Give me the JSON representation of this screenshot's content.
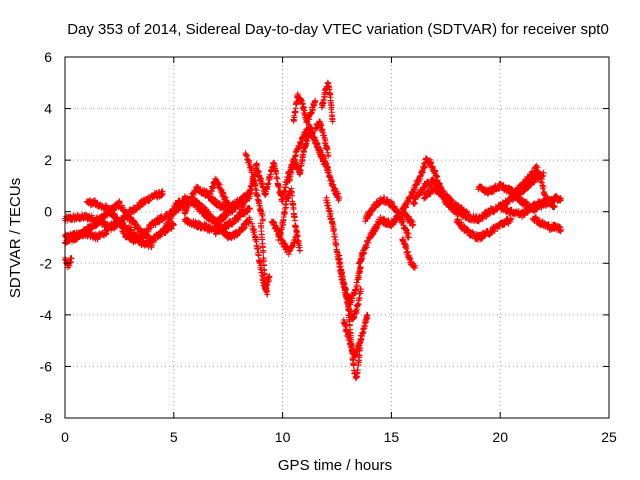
{
  "chart_data": {
    "type": "scatter",
    "title": "Day 353 of 2014, Sidereal Day-to-day VTEC variation (SDTVAR) for receiver spt0",
    "xlabel": "GPS time / hours",
    "ylabel": "SDTVAR / TECUs",
    "xlim": [
      0,
      25
    ],
    "ylim": [
      -8,
      6
    ],
    "xticks": [
      0,
      5,
      10,
      15,
      20,
      25
    ],
    "yticks": [
      -8,
      -6,
      -4,
      -2,
      0,
      2,
      4,
      6
    ],
    "grid": true,
    "marker": "+",
    "series": [
      {
        "name": "SDTVAR",
        "color": "#ff0000",
        "tracks": [
          {
            "x": [
              0,
              0.3,
              1,
              1.5,
              2,
              2.5,
              3,
              3.5,
              4,
              4.5
            ],
            "y": [
              -0.3,
              -0.25,
              -0.2,
              -0.3,
              -0.6,
              -0.4,
              0.0,
              0.3,
              0.6,
              0.7
            ]
          },
          {
            "x": [
              0,
              0.5,
              1,
              1.5,
              2,
              2.5,
              3,
              3.5,
              4
            ],
            "y": [
              -1.0,
              -0.9,
              -0.85,
              -1.0,
              -0.7,
              -0.4,
              -0.7,
              -1.2,
              -1.3
            ]
          },
          {
            "x": [
              0,
              0.5,
              1,
              1.5,
              2,
              2.5,
              3,
              3.5,
              4,
              4.5,
              5
            ],
            "y": [
              -1.2,
              -1.0,
              -0.7,
              -0.4,
              0.0,
              0.3,
              -0.3,
              -0.8,
              -1.1,
              -0.8,
              -0.5
            ]
          },
          {
            "x": [
              1,
              1.3,
              1.6,
              2,
              2.4,
              2.8,
              3.2,
              3.6,
              4,
              4.5,
              5
            ],
            "y": [
              0.3,
              0.4,
              0.25,
              0.1,
              -0.3,
              -0.9,
              -1.1,
              -0.9,
              -0.5,
              -0.2,
              0.0
            ]
          },
          {
            "x": [
              0,
              0.1,
              0.2,
              0.3
            ],
            "y": [
              -1.9,
              -2.1,
              -2.0,
              -1.8
            ]
          },
          {
            "x": [
              4.5,
              5,
              5.5,
              6,
              6.5,
              7,
              7.5,
              8,
              8.5
            ],
            "y": [
              -0.8,
              0.0,
              0.3,
              0.4,
              0.0,
              -0.5,
              -1.0,
              -0.8,
              -0.3
            ]
          },
          {
            "x": [
              5,
              5.5,
              6,
              6.5,
              7,
              7.5,
              8,
              8.5
            ],
            "y": [
              0.2,
              0.5,
              0.3,
              -0.2,
              -0.4,
              0.0,
              0.3,
              0.6
            ]
          },
          {
            "x": [
              5.5,
              6,
              6.5,
              7,
              7.5,
              8,
              8.5
            ],
            "y": [
              -0.3,
              -0.5,
              -0.6,
              -0.8,
              -0.5,
              -0.2,
              0.1
            ]
          },
          {
            "x": [
              5.5,
              5.8,
              6,
              6.5,
              7,
              7.5,
              8,
              8.5
            ],
            "y": [
              0.0,
              0.5,
              0.9,
              0.7,
              0.3,
              0.1,
              0.4,
              0.7
            ]
          },
          {
            "x": [
              6.7,
              6.9,
              7.1,
              7.3,
              7.5,
              7.7
            ],
            "y": [
              0.8,
              1.2,
              1.0,
              0.6,
              0.3,
              0.0
            ]
          },
          {
            "x": [
              8,
              8.3,
              8.6,
              8.8,
              9,
              9.2,
              9.4,
              9.6,
              9.8,
              10
            ],
            "y": [
              -0.2,
              0.5,
              1.0,
              1.8,
              1.2,
              0.7,
              1.3,
              1.9,
              1.0,
              0.4
            ]
          },
          {
            "x": [
              8.3,
              8.5,
              8.7,
              8.9,
              9.1
            ],
            "y": [
              2.2,
              1.8,
              1.1,
              0.4,
              -0.3
            ]
          },
          {
            "x": [
              8.6,
              8.8,
              9,
              9.2,
              9.4
            ],
            "y": [
              -0.5,
              -1.2,
              -2.2,
              -3.0,
              -2.5
            ]
          },
          {
            "x": [
              9,
              9.1,
              9.2,
              9.3
            ],
            "y": [
              -0.5,
              -1.5,
              -2.8,
              -3.2
            ]
          },
          {
            "x": [
              9.5,
              9.8,
              10,
              10.3,
              10.6
            ],
            "y": [
              -0.3,
              -0.8,
              -1.2,
              -1.6,
              -1.0
            ]
          },
          {
            "x": [
              9.8,
              10,
              10.2,
              10.4,
              10.6,
              10.8
            ],
            "y": [
              -1.0,
              -0.5,
              0.5,
              0.8,
              -0.6,
              -1.5
            ]
          },
          {
            "x": [
              10,
              10.2,
              10.5,
              10.8,
              11,
              11.3,
              11.6,
              12,
              12.3,
              12.6
            ],
            "y": [
              0.5,
              1.2,
              2.0,
              1.5,
              2.5,
              3.2,
              2.5,
              1.8,
              1.0,
              0.5
            ]
          },
          {
            "x": [
              10.5,
              10.7,
              10.9,
              11.1,
              11.3,
              11.5
            ],
            "y": [
              3.5,
              4.5,
              4.2,
              3.5,
              3.8,
              4.3
            ]
          },
          {
            "x": [
              10.3,
              10.6,
              10.9,
              11.2,
              11.5,
              11.8,
              12.1
            ],
            "y": [
              1.2,
              2.2,
              2.8,
              3.3,
              2.8,
              2.1,
              1.6
            ]
          },
          {
            "x": [
              11.5,
              11.7,
              11.9,
              12.1
            ],
            "y": [
              3.2,
              3.5,
              2.9,
              2.2
            ]
          },
          {
            "x": [
              11.8,
              12,
              12.1,
              12.2,
              12.3
            ],
            "y": [
              4.0,
              4.8,
              5.0,
              4.4,
              3.5
            ]
          },
          {
            "x": [
              12,
              12.3,
              12.5,
              12.7,
              12.9,
              13.1,
              13.3,
              13.5,
              13.7
            ],
            "y": [
              0.5,
              -0.5,
              -1.5,
              -2.5,
              -3.1,
              -3.5,
              -3.2,
              -2.5,
              -1.5
            ]
          },
          {
            "x": [
              12.6,
              12.8,
              13,
              13.2,
              13.4,
              13.6
            ],
            "y": [
              -1.8,
              -2.8,
              -3.6,
              -4.2,
              -3.8,
              -3.0
            ]
          },
          {
            "x": [
              13,
              13.1,
              13.2,
              13.3,
              13.4,
              13.5,
              13.6
            ],
            "y": [
              -3.5,
              -4.5,
              -5.5,
              -6.2,
              -6.5,
              -5.8,
              -4.8
            ]
          },
          {
            "x": [
              12.8,
              13,
              13.3,
              13.6,
              13.9
            ],
            "y": [
              -4.2,
              -4.8,
              -5.6,
              -5.0,
              -4.0
            ]
          },
          {
            "x": [
              13.5,
              14,
              14.5,
              15,
              15.5,
              16
            ],
            "y": [
              -2.0,
              -1.0,
              -0.3,
              -0.5,
              0.0,
              -0.5
            ]
          },
          {
            "x": [
              13.8,
              14.2,
              14.6,
              15,
              15.4,
              15.8
            ],
            "y": [
              -0.3,
              0.2,
              0.5,
              0.3,
              -0.2,
              -1.0
            ]
          },
          {
            "x": [
              15.5,
              15.7,
              15.9,
              16.1
            ],
            "y": [
              -1.0,
              -1.5,
              -2.0,
              -2.1
            ]
          },
          {
            "x": [
              15.5,
              16,
              16.3,
              16.6,
              16.8,
              17,
              17.3,
              17.6,
              18
            ],
            "y": [
              0.0,
              0.8,
              1.3,
              2.0,
              1.9,
              1.5,
              0.8,
              0.3,
              0.0
            ]
          },
          {
            "x": [
              16,
              16.5,
              17,
              17.5,
              18,
              18.5
            ],
            "y": [
              0.3,
              1.0,
              1.2,
              0.6,
              0.2,
              -0.1
            ]
          },
          {
            "x": [
              16.5,
              17,
              17.5,
              18,
              18.5,
              19,
              19.5,
              20,
              20.5,
              21,
              21.5,
              22
            ],
            "y": [
              0.6,
              0.9,
              0.4,
              0.0,
              -0.2,
              -0.3,
              0.0,
              0.2,
              0.5,
              0.8,
              1.2,
              1.5
            ]
          },
          {
            "x": [
              18,
              18.5,
              19,
              19.5,
              20,
              20.5
            ],
            "y": [
              -0.3,
              -0.8,
              -1.0,
              -0.8,
              -0.5,
              -0.3
            ]
          },
          {
            "x": [
              19,
              19.5,
              20,
              20.5,
              21,
              21.5,
              22,
              22.5,
              22.8
            ],
            "y": [
              0.9,
              0.8,
              1.0,
              0.8,
              0.4,
              0.1,
              0.3,
              0.5,
              0.5
            ]
          },
          {
            "x": [
              20.5,
              21,
              21.5,
              21.7,
              21.9,
              22.1,
              22.5
            ],
            "y": [
              0.6,
              1.0,
              1.5,
              1.7,
              1.2,
              0.5,
              0.2
            ]
          },
          {
            "x": [
              21.5,
              21.8,
              22,
              22.3,
              22.6,
              22.8
            ],
            "y": [
              -0.2,
              -0.4,
              -0.5,
              -0.6,
              -0.6,
              -0.7
            ]
          },
          {
            "x": [
              20,
              20.5,
              21,
              21.5,
              22,
              22.5
            ],
            "y": [
              0.2,
              0.0,
              -0.1,
              0.2,
              0.4,
              0.4
            ]
          }
        ]
      }
    ]
  }
}
